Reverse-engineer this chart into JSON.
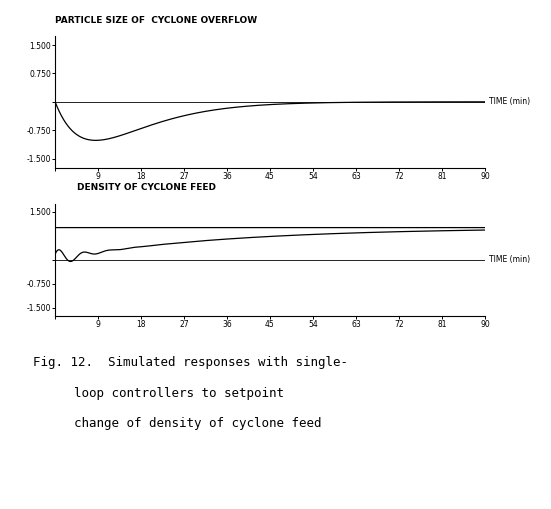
{
  "title1": "PARTICLE SIZE OF  CYCLONE OVERFLOW",
  "title2": "DENSITY OF CYCLONE FEED",
  "xlabel": "TIME (min)",
  "background_color": "#ffffff",
  "line_color": "#000000",
  "title_fontsize": 6.5,
  "tick_fontsize": 5.5,
  "xlabel_fontsize": 5.5,
  "caption_fontsize": 9,
  "xticks": [
    0,
    9,
    18,
    27,
    36,
    45,
    54,
    63,
    72,
    81,
    90
  ],
  "xtick_labels": [
    "",
    "9",
    "18",
    "27",
    "36",
    "45",
    "54",
    "63",
    "72",
    "81",
    "90"
  ],
  "yticks1": [
    1.5,
    0.75,
    0.0,
    -0.75,
    -1.5
  ],
  "ytick_labels1": [
    "1.500",
    "0.750",
    "",
    "-0.750",
    "-1.500"
  ],
  "yticks2": [
    1.5,
    0.0,
    -0.75,
    -1.5
  ],
  "ytick_labels2": [
    "1.500",
    "",
    "-0.750",
    "-1.500"
  ],
  "ylim": [
    -1.75,
    1.75
  ],
  "caption_line1": "Fig. 12.  Simulated responses with single-",
  "caption_line2": "loop controllers to setpoint",
  "caption_line3": "change of density of cyclone feed"
}
